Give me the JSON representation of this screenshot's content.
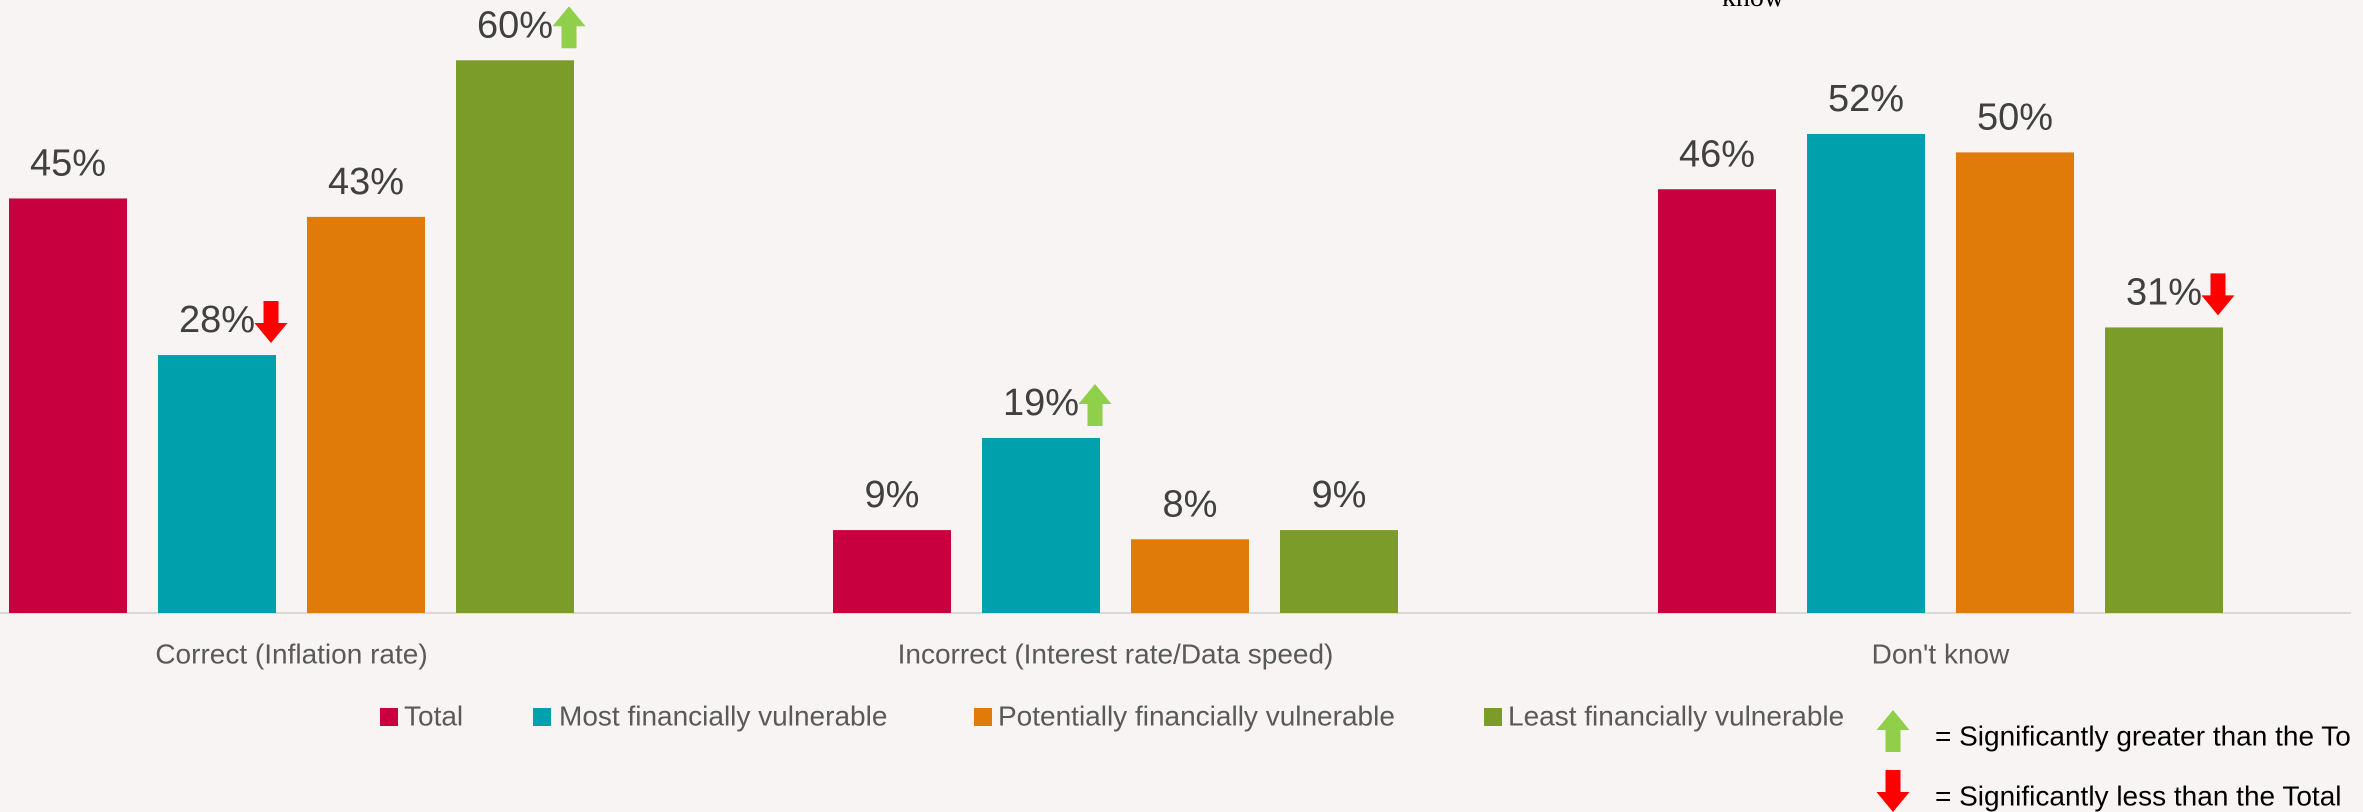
{
  "chart_data": {
    "type": "bar",
    "annotation": "know",
    "categories": [
      "Correct (Inflation rate)",
      "Incorrect (Interest rate/Data speed)",
      "Don't know"
    ],
    "series": [
      {
        "name": "Total",
        "color": "#c8003f",
        "values": [
          45,
          9,
          46
        ],
        "value_labels": [
          "45%",
          "9%",
          "46%"
        ],
        "markers": [
          null,
          null,
          null
        ]
      },
      {
        "name": "Most financially vulnerable",
        "color": "#00a0ad",
        "values": [
          28,
          19,
          52
        ],
        "value_labels": [
          "28%",
          "19%",
          "52%"
        ],
        "markers": [
          "down",
          "up",
          null
        ]
      },
      {
        "name": "Potentially financially vulnerable",
        "color": "#e07b0a",
        "values": [
          43,
          8,
          50
        ],
        "value_labels": [
          "43%",
          "8%",
          "50%"
        ],
        "markers": [
          null,
          null,
          null
        ]
      },
      {
        "name": "Least financially vulnerable",
        "color": "#7c9c2a",
        "values": [
          60,
          9,
          31
        ],
        "value_labels": [
          "60%",
          "9%",
          "31%"
        ],
        "markers": [
          "up",
          null,
          "down"
        ]
      }
    ],
    "ylim": [
      0,
      66
    ],
    "marker_legend": [
      {
        "marker": "up",
        "color": "#8fcf4a",
        "label": "= Significantly greater than the To"
      },
      {
        "marker": "down",
        "color": "#ff0000",
        "label": "= Significantly less than the Total"
      }
    ],
    "marker_colors": {
      "up": "#8fcf4a",
      "down": "#ff0000"
    }
  }
}
